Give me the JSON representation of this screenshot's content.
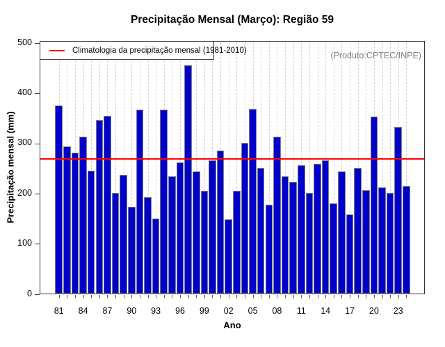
{
  "title": "Precipitação Mensal (Março): Região 59",
  "watermark": "(Produto:CPTEC/INPE)",
  "legend": {
    "label": "Climatologia da precipitação mensal (1981-2010)",
    "line_color": "#ff0000"
  },
  "colors": {
    "bar_fill": "#0000cd",
    "bar_border": "#808080",
    "climatology_line": "#ff0000",
    "watermark_text": "#808080",
    "gridline": "#c9c9c9",
    "axis": "#333333"
  },
  "chart_data": {
    "type": "bar",
    "title": "Precipitação Mensal (Março): Região 59",
    "xlabel": "Ano",
    "ylabel": "Precipitação mensal (mm)",
    "units": "mm",
    "ylim": [
      0,
      500
    ],
    "yticks": [
      0,
      100,
      200,
      300,
      400,
      500
    ],
    "grid": "vertical-dotted",
    "legend_position": "top-left",
    "categories": [
      1981,
      1982,
      1983,
      1984,
      1985,
      1986,
      1987,
      1988,
      1989,
      1990,
      1991,
      1992,
      1993,
      1994,
      1995,
      1996,
      1997,
      1998,
      1999,
      2000,
      2001,
      2002,
      2003,
      2004,
      2005,
      2006,
      2007,
      2008,
      2009,
      2010,
      2011,
      2012,
      2013,
      2014,
      2015,
      2016,
      2017,
      2018,
      2019,
      2020,
      2021,
      2022,
      2023,
      2024
    ],
    "values": [
      374,
      293,
      280,
      313,
      245,
      346,
      354,
      200,
      236,
      173,
      367,
      192,
      149,
      367,
      234,
      262,
      455,
      243,
      205,
      265,
      285,
      148,
      205,
      300,
      368,
      250,
      177,
      313,
      234,
      222,
      256,
      201,
      258,
      266,
      180,
      243,
      158,
      250,
      206,
      353,
      211,
      201,
      332,
      214
    ],
    "xtick_labels": [
      "81",
      "84",
      "87",
      "90",
      "93",
      "96",
      "99",
      "02",
      "05",
      "08",
      "11",
      "14",
      "17",
      "20",
      "23"
    ],
    "climatology_mean": 269
  }
}
